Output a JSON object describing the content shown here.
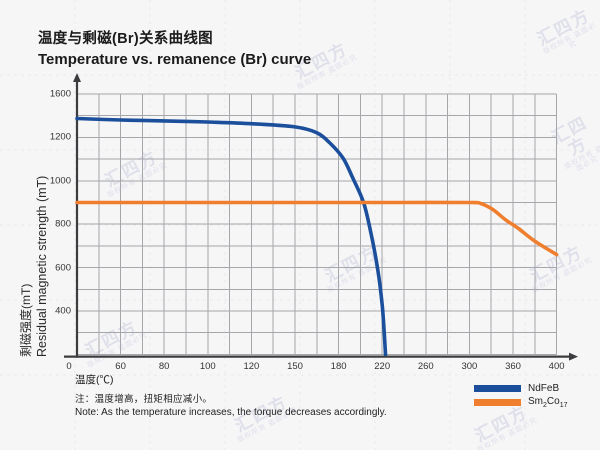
{
  "header": {
    "title_zh": "温度与剩磁(Br)关系曲线图",
    "title_en": "Temperature vs. remanence (Br) curve"
  },
  "y_axis": {
    "label_zh": "剩磁强度(mT)",
    "label_en": "Residual magnetic strength (mT)",
    "ticks": [
      1600,
      1200,
      1000,
      800,
      600,
      400,
      0
    ]
  },
  "x_axis": {
    "label": "温度(℃)",
    "ticks": [
      0,
      60,
      80,
      100,
      120,
      150,
      180,
      220,
      260,
      300,
      360,
      400
    ]
  },
  "legend": {
    "items": [
      {
        "label": "NdFeB",
        "color": "#1b4e9b"
      },
      {
        "label": "Sm2Co17",
        "parts": [
          "Sm",
          "2",
          "Co",
          "17"
        ],
        "color": "#ef7f2e"
      }
    ]
  },
  "note": {
    "zh": "注：温度增高，扭矩相应减小。",
    "en": "Note: As the temperature increases, the torque decreases accordingly."
  },
  "watermark": {
    "text": "汇四方",
    "subtext": "版权所有 盗图必究"
  },
  "colors": {
    "background": "#f6f6f7",
    "grid_line": "#a5a7ab",
    "axis_line": "#3c3c3e",
    "bg_dash": "#e9e9ee",
    "ndfeb_blue": "#1b4e9b",
    "smco_orange": "#ef7f2e"
  },
  "chart_data": {
    "type": "line",
    "title": "Temperature vs. remanence (Br) curve",
    "xlabel": "温度(℃)",
    "ylabel": "剩磁强度(mT) / Residual magnetic strength (mT)",
    "x_ticks": [
      0,
      60,
      80,
      100,
      120,
      150,
      180,
      220,
      260,
      300,
      360,
      400
    ],
    "y_ticks": [
      1600,
      1200,
      1000,
      800,
      600,
      400,
      0
    ],
    "grid": true,
    "legend_position": "bottom-right",
    "series": [
      {
        "name": "NdFeB",
        "color": "#1b4e9b",
        "points": [
          [
            0,
            1374
          ],
          [
            60,
            1360
          ],
          [
            80,
            1352
          ],
          [
            100,
            1342
          ],
          [
            120,
            1326
          ],
          [
            150,
            1297
          ],
          [
            165,
            1242
          ],
          [
            174,
            1174
          ],
          [
            184,
            1105
          ],
          [
            193,
            1013
          ],
          [
            203,
            898
          ],
          [
            210,
            751
          ],
          [
            216,
            589
          ],
          [
            220,
            428
          ],
          [
            222,
            178
          ],
          [
            223,
            0
          ]
        ]
      },
      {
        "name": "Sm2Co17",
        "color": "#ef7f2e",
        "points": [
          [
            0,
            900
          ],
          [
            60,
            900
          ],
          [
            120,
            900
          ],
          [
            180,
            900
          ],
          [
            240,
            900
          ],
          [
            300,
            900
          ],
          [
            316,
            895
          ],
          [
            332,
            868
          ],
          [
            350,
            820
          ],
          [
            365,
            780
          ],
          [
            380,
            722
          ],
          [
            400,
            660
          ]
        ]
      }
    ]
  }
}
